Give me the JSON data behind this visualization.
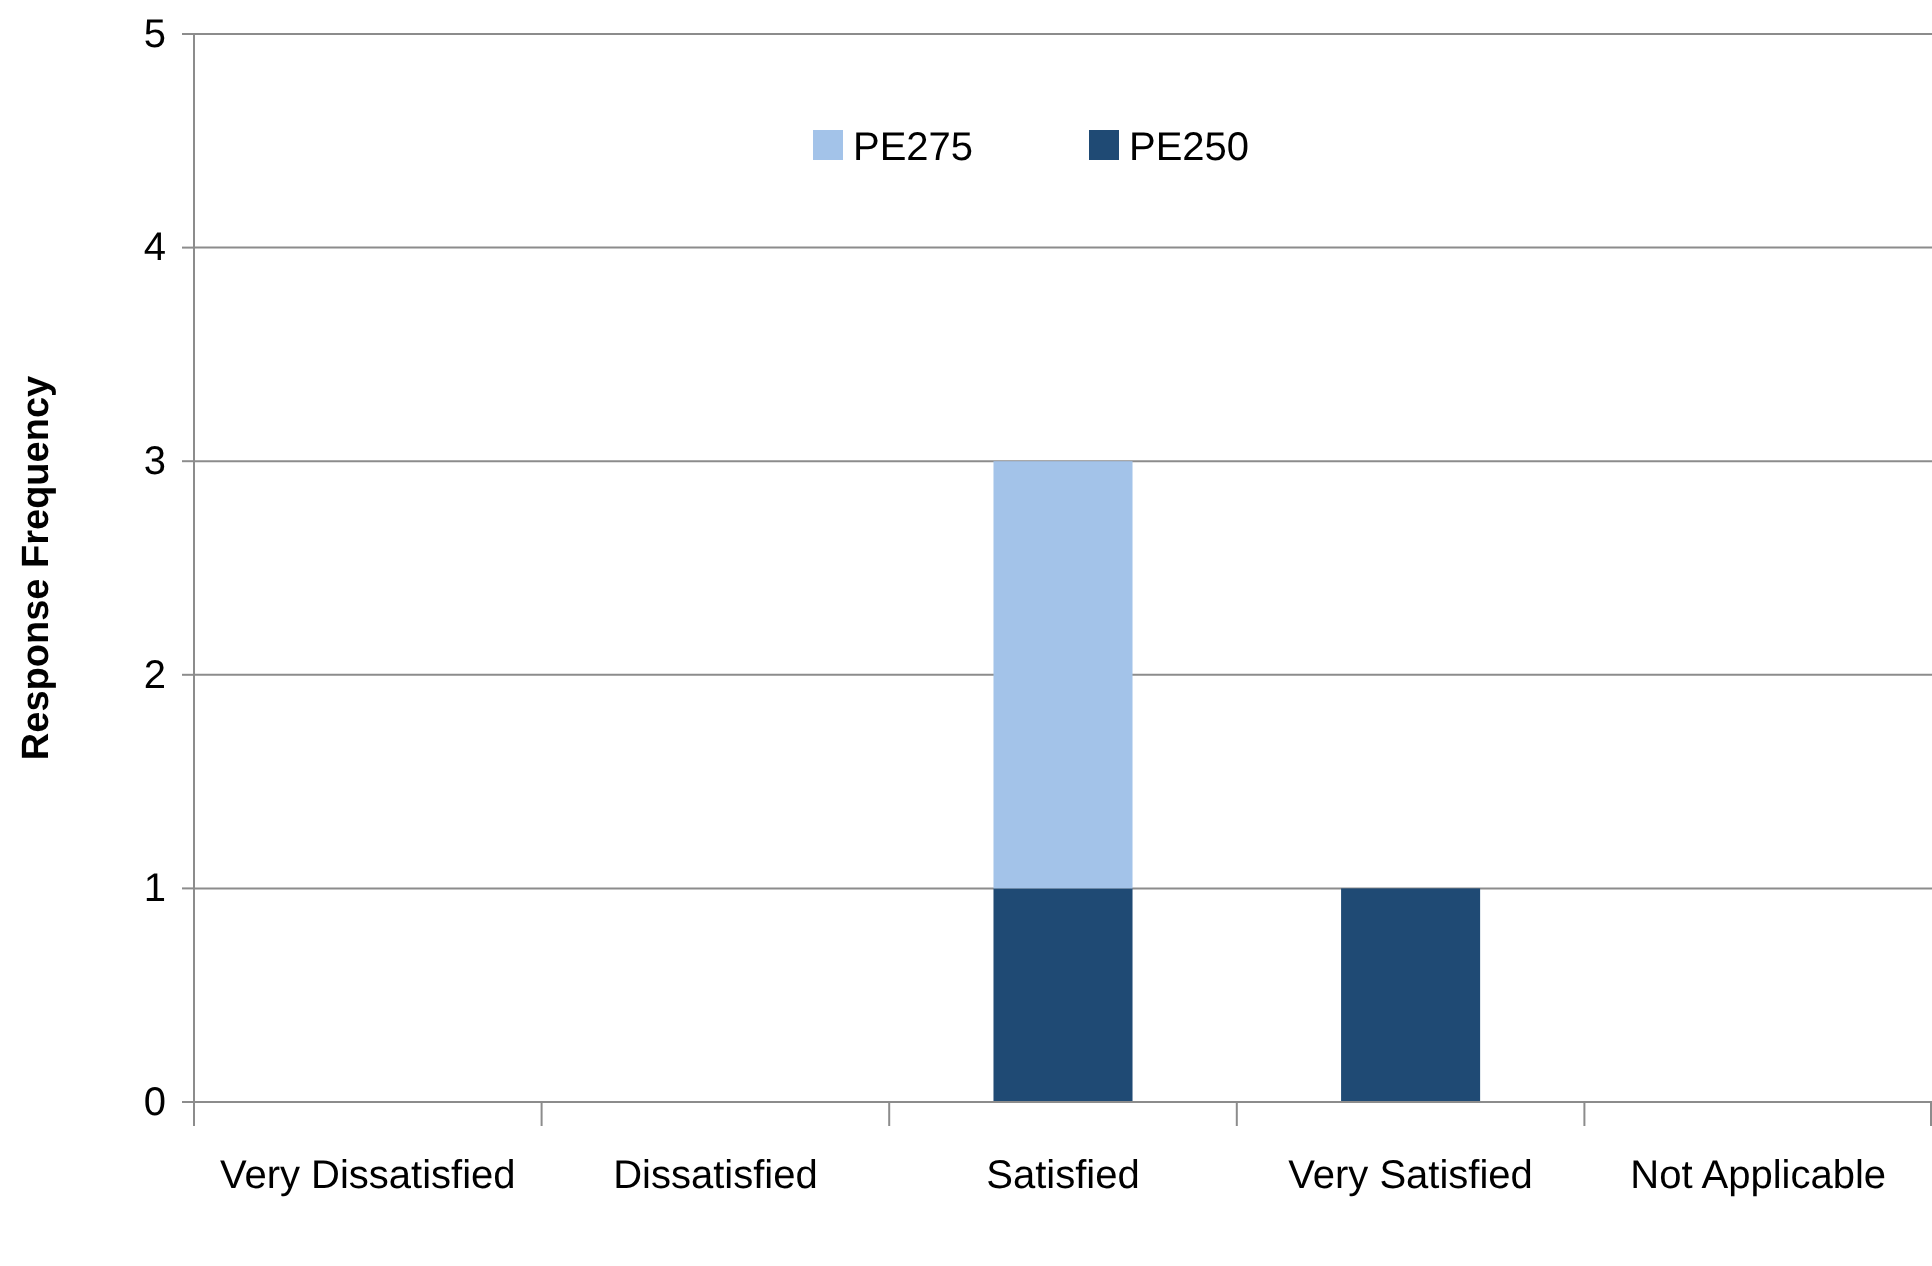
{
  "chart_data": {
    "type": "bar",
    "ylabel": "Response Frequency",
    "stacked": true,
    "categories": [
      "Very Dissatisfied",
      "Dissatisfied",
      "Satisfied",
      "Very Satisfied",
      "Not Applicable"
    ],
    "series": [
      {
        "name": "PE250",
        "color": "#1f4a74",
        "values": [
          0,
          0,
          1,
          1,
          0
        ]
      },
      {
        "name": "PE275",
        "color": "#a3c3e9",
        "values": [
          0,
          0,
          2,
          0,
          0
        ]
      }
    ],
    "ylim": [
      0,
      5
    ],
    "yticks": [
      0,
      1,
      2,
      3,
      4,
      5
    ],
    "grid": "y",
    "legend": "top"
  }
}
